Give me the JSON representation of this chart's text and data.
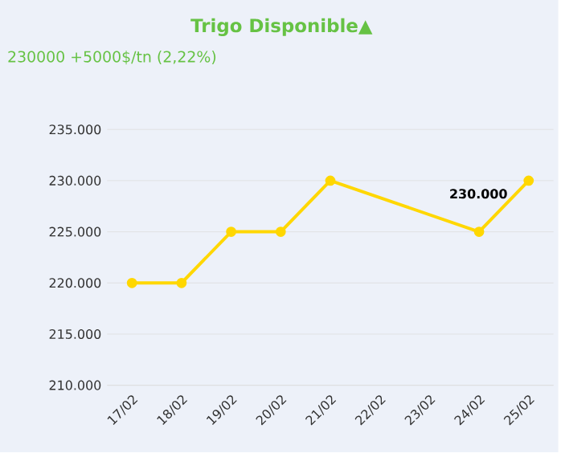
{
  "chart_data": {
    "type": "line",
    "title": "Trigo Disponible▲",
    "subtitle": "230000 +5000$/tn (2,22%)",
    "categories": [
      "17/02",
      "18/02",
      "19/02",
      "20/02",
      "21/02",
      "22/02",
      "23/02",
      "24/02",
      "25/02"
    ],
    "series": [
      {
        "color": "#ffd700",
        "values": [
          220000,
          220000,
          225000,
          225000,
          230000,
          null,
          null,
          225000,
          230000
        ],
        "value_labels": [
          null,
          null,
          null,
          null,
          null,
          null,
          null,
          null,
          "230.000"
        ]
      }
    ],
    "ylim": [
      210000,
      235000
    ],
    "yticks": [
      {
        "value": 210000,
        "label": "210.000"
      },
      {
        "value": 215000,
        "label": "215.000"
      },
      {
        "value": 220000,
        "label": "220.000"
      },
      {
        "value": 225000,
        "label": "225.000"
      },
      {
        "value": 230000,
        "label": "230.000"
      },
      {
        "value": 235000,
        "label": "235.000"
      }
    ],
    "grid": "y",
    "marker": "circle",
    "line_style": "solid"
  }
}
